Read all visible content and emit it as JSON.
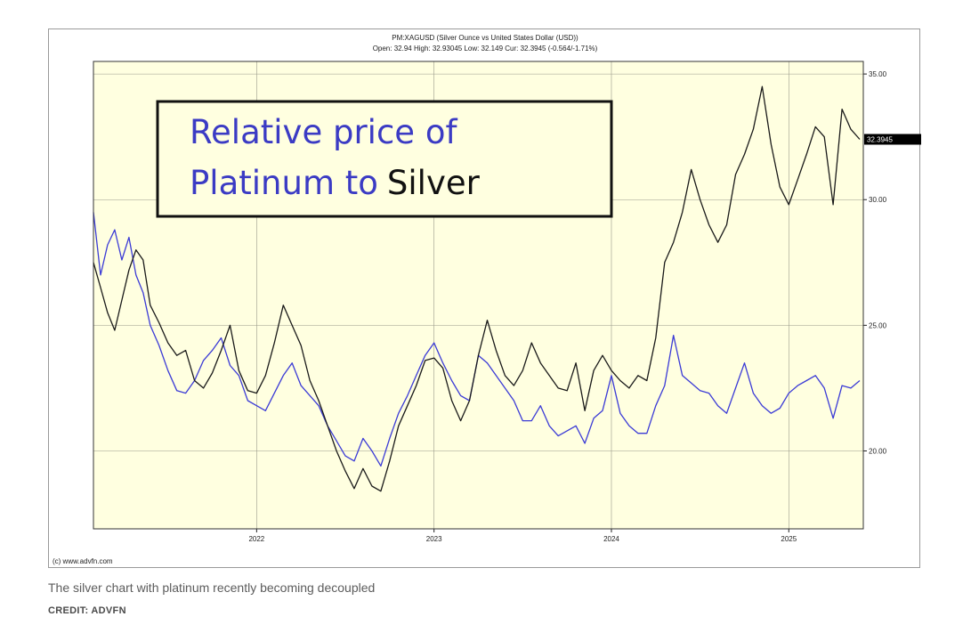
{
  "colors": {
    "plot_bg": "#ffffe0",
    "silver_line": "#1a1a1a",
    "platinum_line": "#3b3bd6",
    "annotation_blue": "#3b3bc4",
    "annotation_black": "#111111",
    "grid": "#9a9a8a"
  },
  "chart_data": {
    "type": "line",
    "header_line1": "PM:XAGUSD (Silver Ounce vs United States Dollar (USD))",
    "header_line2": "Open: 32.94 High: 32.93045 Low: 32.149 Cur: 32.3945 (-0.564/-1.71%)",
    "current_value_label": "32.3945",
    "annotation": {
      "line1": "Relative price of",
      "line2_part1": "Platinum to",
      "line2_part2": "Silver"
    },
    "copyright": "(c) www.advfn.com",
    "x_ticks": [
      "2022",
      "2023",
      "2024",
      "2025"
    ],
    "y_ticks": [
      "35.00",
      "30.00",
      "25.00",
      "20.00"
    ],
    "xlim": [
      2021.08,
      2025.42
    ],
    "ylim": [
      16.9,
      35.5
    ],
    "grid": true,
    "x_scale": "years",
    "series": [
      {
        "name": "",
        "color_key": "silver_line",
        "x": [
          2021.08,
          2021.12,
          2021.16,
          2021.2,
          2021.24,
          2021.28,
          2021.32,
          2021.36,
          2021.4,
          2021.45,
          2021.5,
          2021.55,
          2021.6,
          2021.65,
          2021.7,
          2021.75,
          2021.8,
          2021.85,
          2021.9,
          2021.95,
          2022.0,
          2022.05,
          2022.1,
          2022.15,
          2022.2,
          2022.25,
          2022.3,
          2022.35,
          2022.4,
          2022.45,
          2022.5,
          2022.55,
          2022.6,
          2022.65,
          2022.7,
          2022.75,
          2022.8,
          2022.85,
          2022.9,
          2022.95,
          2023.0,
          2023.05,
          2023.1,
          2023.15,
          2023.2,
          2023.25,
          2023.3,
          2023.35,
          2023.4,
          2023.45,
          2023.5,
          2023.55,
          2023.6,
          2023.65,
          2023.7,
          2023.75,
          2023.8,
          2023.85,
          2023.9,
          2023.95,
          2024.0,
          2024.05,
          2024.1,
          2024.15,
          2024.2,
          2024.25,
          2024.3,
          2024.35,
          2024.4,
          2024.45,
          2024.5,
          2024.55,
          2024.6,
          2024.65,
          2024.7,
          2024.75,
          2024.8,
          2024.85,
          2024.9,
          2024.95,
          2025.0,
          2025.05,
          2025.1,
          2025.15,
          2025.2,
          2025.25,
          2025.3,
          2025.35,
          2025.4
        ],
        "y": [
          27.5,
          26.5,
          25.5,
          24.8,
          26.0,
          27.2,
          28.0,
          27.6,
          25.8,
          25.1,
          24.3,
          23.8,
          24.0,
          22.8,
          22.5,
          23.1,
          24.0,
          25.0,
          23.2,
          22.4,
          22.3,
          23.0,
          24.3,
          25.8,
          25.0,
          24.2,
          22.8,
          22.0,
          21.0,
          20.0,
          19.2,
          18.5,
          19.3,
          18.6,
          18.4,
          19.6,
          21.0,
          21.8,
          22.6,
          23.6,
          23.7,
          23.3,
          22.0,
          21.2,
          22.0,
          23.8,
          25.2,
          24.0,
          23.0,
          22.6,
          23.2,
          24.3,
          23.5,
          23.0,
          22.5,
          22.4,
          23.5,
          21.6,
          23.2,
          23.8,
          23.2,
          22.8,
          22.5,
          23.0,
          22.8,
          24.5,
          27.5,
          28.3,
          29.5,
          31.2,
          30.0,
          29.0,
          28.3,
          29.0,
          31.0,
          31.8,
          32.8,
          34.5,
          32.2,
          30.5,
          29.8,
          30.8,
          31.8,
          32.9,
          32.5,
          29.8,
          33.6,
          32.8,
          32.4
        ]
      },
      {
        "name": "",
        "color_key": "platinum_line",
        "x": [
          2021.08,
          2021.12,
          2021.16,
          2021.2,
          2021.24,
          2021.28,
          2021.32,
          2021.36,
          2021.4,
          2021.45,
          2021.5,
          2021.55,
          2021.6,
          2021.65,
          2021.7,
          2021.75,
          2021.8,
          2021.85,
          2021.9,
          2021.95,
          2022.0,
          2022.05,
          2022.1,
          2022.15,
          2022.2,
          2022.25,
          2022.3,
          2022.35,
          2022.4,
          2022.45,
          2022.5,
          2022.55,
          2022.6,
          2022.65,
          2022.7,
          2022.75,
          2022.8,
          2022.85,
          2022.9,
          2022.95,
          2023.0,
          2023.05,
          2023.1,
          2023.15,
          2023.2,
          2023.25,
          2023.3,
          2023.35,
          2023.4,
          2023.45,
          2023.5,
          2023.55,
          2023.6,
          2023.65,
          2023.7,
          2023.75,
          2023.8,
          2023.85,
          2023.9,
          2023.95,
          2024.0,
          2024.05,
          2024.1,
          2024.15,
          2024.2,
          2024.25,
          2024.3,
          2024.35,
          2024.4,
          2024.45,
          2024.5,
          2024.55,
          2024.6,
          2024.65,
          2024.7,
          2024.75,
          2024.8,
          2024.85,
          2024.9,
          2024.95,
          2025.0,
          2025.05,
          2025.1,
          2025.15,
          2025.2,
          2025.25,
          2025.3,
          2025.35,
          2025.4
        ],
        "y": [
          29.5,
          27.0,
          28.2,
          28.8,
          27.6,
          28.5,
          27.0,
          26.3,
          25.0,
          24.2,
          23.2,
          22.4,
          22.3,
          22.8,
          23.6,
          24.0,
          24.5,
          23.4,
          23.0,
          22.0,
          21.8,
          21.6,
          22.3,
          23.0,
          23.5,
          22.6,
          22.2,
          21.8,
          21.0,
          20.4,
          19.8,
          19.6,
          20.5,
          20.0,
          19.4,
          20.5,
          21.5,
          22.2,
          23.0,
          23.8,
          24.3,
          23.5,
          22.8,
          22.2,
          22.0,
          23.8,
          23.5,
          23.0,
          22.5,
          22.0,
          21.2,
          21.2,
          21.8,
          21.0,
          20.6,
          20.8,
          21.0,
          20.3,
          21.3,
          21.6,
          23.0,
          21.5,
          21.0,
          20.7,
          20.7,
          21.8,
          22.6,
          24.6,
          23.0,
          22.7,
          22.4,
          22.3,
          21.8,
          21.5,
          22.5,
          23.5,
          22.3,
          21.8,
          21.5,
          21.7,
          22.3,
          22.6,
          22.8,
          23.0,
          22.5,
          21.3,
          22.6,
          22.5,
          22.8
        ]
      }
    ]
  },
  "caption": "The silver chart with platinum recently becoming decoupled",
  "credit": "CREDIT: ADVFN"
}
